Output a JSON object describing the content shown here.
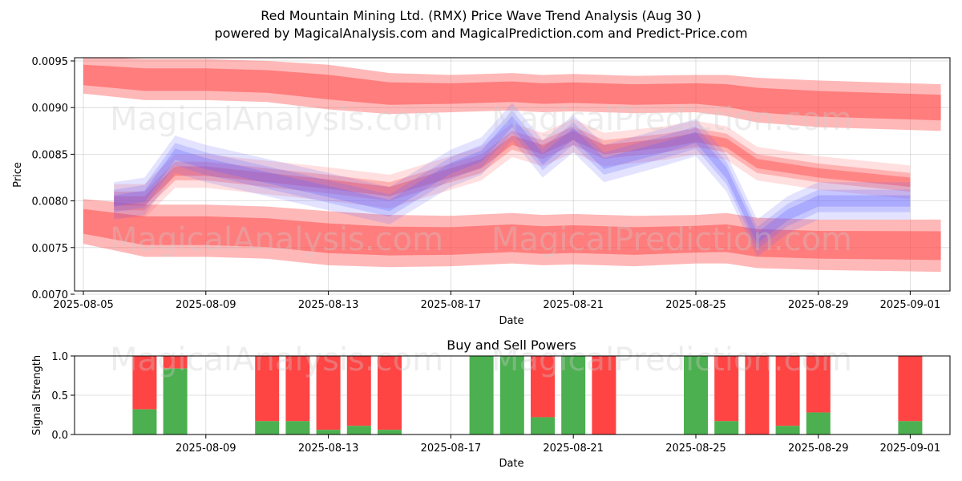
{
  "header": {
    "title": "Red Mountain Mining Ltd. (RMX) Price Wave Trend Analysis (Aug 30 )",
    "subtitle": "powered by MagicalAnalysis.com and MagicalPrediction.com and Predict-Price.com"
  },
  "watermarks": [
    "MagicalAnalysis.com",
    "MagicalPrediction.com"
  ],
  "colors": {
    "red_band": "#ff4d4d",
    "blue_band": "#6666ff",
    "buy": "#4caf50",
    "sell": "#ff4444"
  },
  "chart_data": [
    {
      "type": "area",
      "xlabel": "Date",
      "ylabel": "Price",
      "xlim": [
        "2025-08-05",
        "2025-09-02"
      ],
      "ylim": [
        0.007,
        0.0095
      ],
      "x_ticks": [
        "2025-08-05",
        "2025-08-09",
        "2025-08-13",
        "2025-08-17",
        "2025-08-21",
        "2025-08-25",
        "2025-08-29",
        "2025-09-01"
      ],
      "y_ticks": [
        "0.0070",
        "0.0075",
        "0.0080",
        "0.0085",
        "0.0090",
        "0.0095"
      ],
      "grid": true,
      "series": [
        {
          "kind": "upper-band",
          "x": [
            "2025-08-05",
            "2025-08-07",
            "2025-08-09",
            "2025-08-11",
            "2025-08-13",
            "2025-08-15",
            "2025-08-17",
            "2025-08-19",
            "2025-08-20",
            "2025-08-21",
            "2025-08-23",
            "2025-08-25",
            "2025-08-26",
            "2025-08-27",
            "2025-08-29",
            "2025-09-02"
          ],
          "center": [
            0.00935,
            0.0093,
            0.0093,
            0.00928,
            0.00922,
            0.00915,
            0.00915,
            0.00917,
            0.00915,
            0.00916,
            0.00914,
            0.00915,
            0.00913,
            0.00908,
            0.00904,
            0.009
          ],
          "half_width": [
            0.0002,
            0.00022,
            0.00022,
            0.00022,
            0.00024,
            0.00022,
            0.0002,
            0.0002,
            0.0002,
            0.0002,
            0.0002,
            0.0002,
            0.00022,
            0.00024,
            0.00025,
            0.00025
          ]
        },
        {
          "kind": "lower-band",
          "x": [
            "2025-08-05",
            "2025-08-07",
            "2025-08-09",
            "2025-08-11",
            "2025-08-13",
            "2025-08-15",
            "2025-08-17",
            "2025-08-19",
            "2025-08-20",
            "2025-08-21",
            "2025-08-23",
            "2025-08-25",
            "2025-08-26",
            "2025-08-27",
            "2025-08-29",
            "2025-09-02"
          ],
          "center": [
            0.00778,
            0.00768,
            0.00768,
            0.00766,
            0.0076,
            0.00757,
            0.00757,
            0.0076,
            0.00758,
            0.00759,
            0.00757,
            0.00759,
            0.0076,
            0.00755,
            0.00753,
            0.00752
          ],
          "half_width": [
            0.00024,
            0.00028,
            0.00028,
            0.00028,
            0.00029,
            0.00028,
            0.00027,
            0.00027,
            0.00027,
            0.00027,
            0.00027,
            0.00026,
            0.00027,
            0.00027,
            0.00027,
            0.00028
          ]
        },
        {
          "kind": "red-wave",
          "x": [
            "2025-08-06",
            "2025-08-07",
            "2025-08-08",
            "2025-08-09",
            "2025-08-11",
            "2025-08-13",
            "2025-08-15",
            "2025-08-17",
            "2025-08-18",
            "2025-08-19",
            "2025-08-20",
            "2025-08-21",
            "2025-08-22",
            "2025-08-24",
            "2025-08-25",
            "2025-08-26",
            "2025-08-27",
            "2025-08-29",
            "2025-09-01"
          ],
          "values": [
            0.008,
            0.008,
            0.00832,
            0.00832,
            0.00825,
            0.00818,
            0.0081,
            0.0083,
            0.0084,
            0.00865,
            0.00855,
            0.0087,
            0.00855,
            0.00862,
            0.00868,
            0.00862,
            0.0084,
            0.0083,
            0.0082
          ]
        },
        {
          "kind": "blue-wave",
          "x": [
            "2025-08-06",
            "2025-08-07",
            "2025-08-08",
            "2025-08-09",
            "2025-08-11",
            "2025-08-13",
            "2025-08-15",
            "2025-08-17",
            "2025-08-18",
            "2025-08-19",
            "2025-08-20",
            "2025-08-21",
            "2025-08-22",
            "2025-08-24",
            "2025-08-25",
            "2025-08-26",
            "2025-08-27",
            "2025-08-28",
            "2025-08-29",
            "2025-09-01"
          ],
          "values": [
            0.008,
            0.00805,
            0.0085,
            0.0084,
            0.00825,
            0.0081,
            0.00795,
            0.00835,
            0.00848,
            0.00885,
            0.00845,
            0.00872,
            0.0084,
            0.00858,
            0.00868,
            0.0083,
            0.0076,
            0.00785,
            0.008,
            0.008
          ]
        }
      ]
    },
    {
      "type": "bar",
      "title": "Buy and Sell Powers",
      "xlabel": "Date",
      "ylabel": "Signal Strength",
      "ylim": [
        0.0,
        1.0
      ],
      "y_ticks": [
        "0.0",
        "0.5",
        "1.0"
      ],
      "x_ticks": [
        "2025-08-09",
        "2025-08-13",
        "2025-08-17",
        "2025-08-21",
        "2025-08-25",
        "2025-08-29",
        "2025-09-01"
      ],
      "series": [
        {
          "name": "Buy",
          "color": "#4caf50"
        },
        {
          "name": "Sell",
          "color": "#ff4444"
        }
      ],
      "bars": [
        {
          "date": "2025-08-07",
          "buy": 0.32
        },
        {
          "date": "2025-08-08",
          "buy": 0.84
        },
        {
          "date": "2025-08-11",
          "buy": 0.17
        },
        {
          "date": "2025-08-12",
          "buy": 0.17
        },
        {
          "date": "2025-08-13",
          "buy": 0.06
        },
        {
          "date": "2025-08-14",
          "buy": 0.11
        },
        {
          "date": "2025-08-15",
          "buy": 0.06
        },
        {
          "date": "2025-08-18",
          "buy": 1.0
        },
        {
          "date": "2025-08-19",
          "buy": 1.0
        },
        {
          "date": "2025-08-20",
          "buy": 0.22
        },
        {
          "date": "2025-08-21",
          "buy": 1.0
        },
        {
          "date": "2025-08-22",
          "buy": 0.0
        },
        {
          "date": "2025-08-25",
          "buy": 1.0
        },
        {
          "date": "2025-08-26",
          "buy": 0.17
        },
        {
          "date": "2025-08-27",
          "buy": 0.0
        },
        {
          "date": "2025-08-28",
          "buy": 0.11
        },
        {
          "date": "2025-08-29",
          "buy": 0.28
        },
        {
          "date": "2025-09-01",
          "buy": 0.17
        }
      ]
    }
  ]
}
